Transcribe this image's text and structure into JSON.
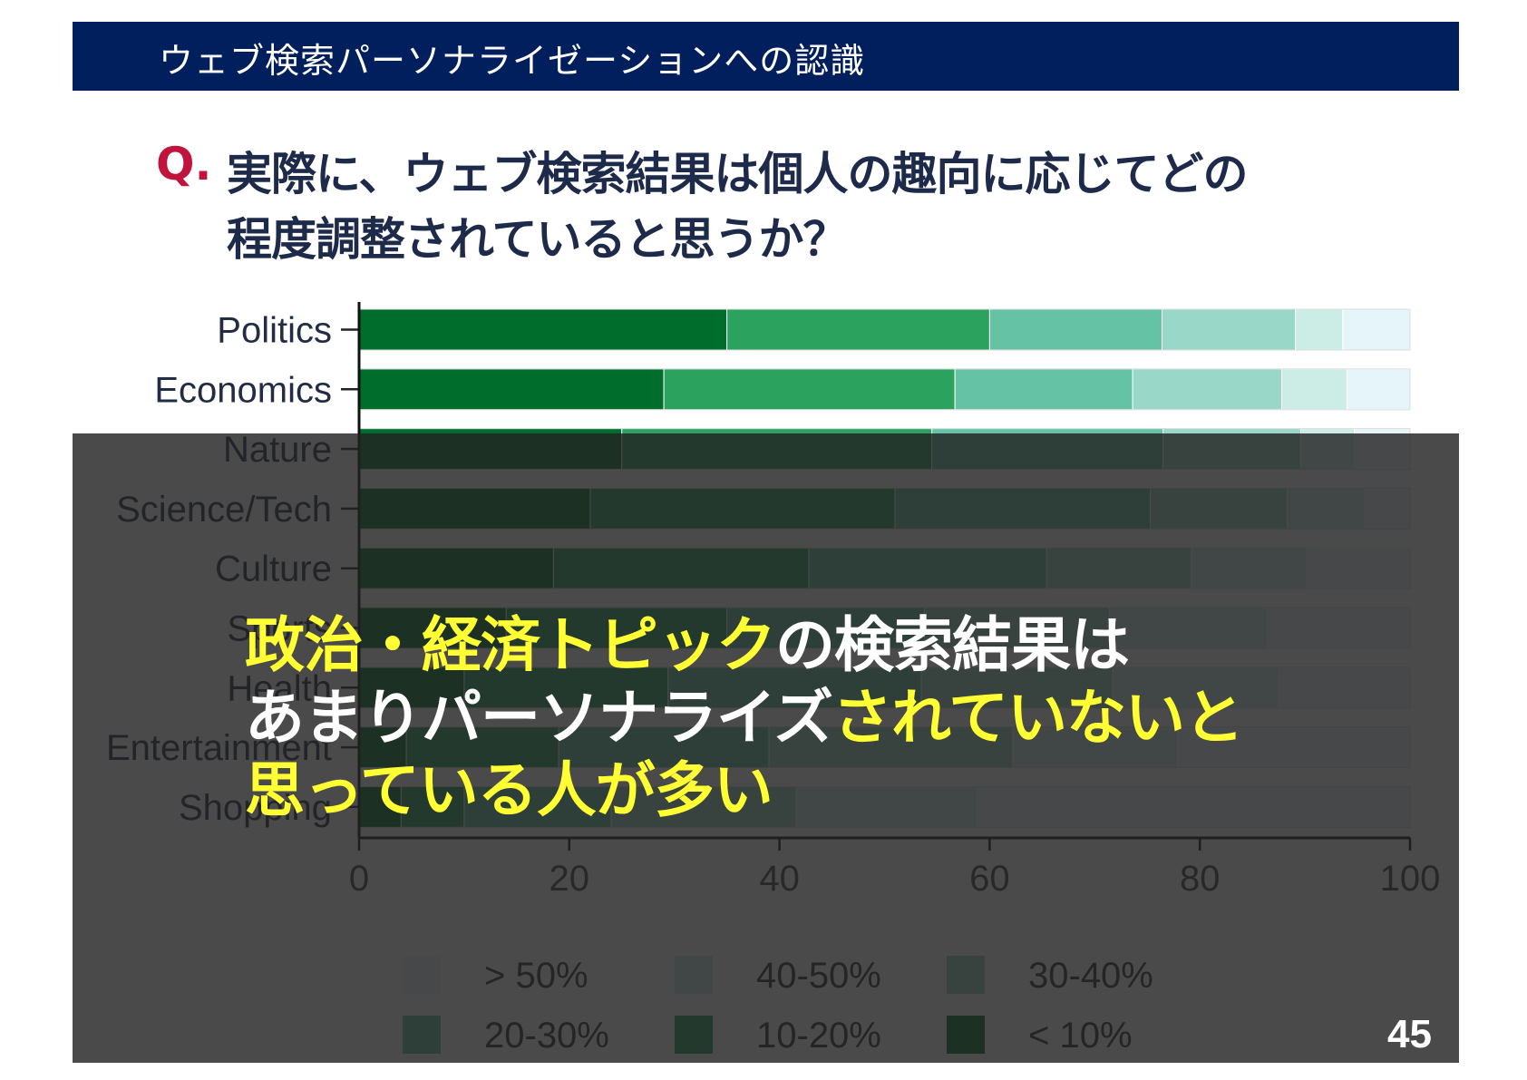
{
  "header": {
    "title": "ウェブ検索パーソナライゼーションへの認識"
  },
  "question": {
    "mark": "Q.",
    "line1": "実際に、ウェブ検索結果は個人の趣向に応じてどの",
    "line2": "程度調整されていると思うか？"
  },
  "chart_data": {
    "type": "bar",
    "orientation": "horizontal",
    "stacked": true,
    "categories": [
      "Politics",
      "Economics",
      "Nature",
      "Science/Tech",
      "Culture",
      "Sports",
      "Health",
      "Entertainment",
      "Shopping"
    ],
    "series": [
      {
        "name": "< 10%",
        "color": "#006d2c",
        "values": [
          35,
          29,
          25,
          22,
          18.5,
          14,
          10,
          4.5,
          4
        ]
      },
      {
        "name": "10-20%",
        "color": "#2ca25f",
        "values": [
          25,
          27.7,
          29.5,
          29,
          24.3,
          21,
          19.4,
          14.5,
          6
        ]
      },
      {
        "name": "20-30%",
        "color": "#66c2a4",
        "values": [
          16.4,
          16.9,
          22,
          24.3,
          22.6,
          18.8,
          24.1,
          20,
          14
        ]
      },
      {
        "name": "30-40%",
        "color": "#99d8c9",
        "values": [
          12.7,
          14.2,
          13.1,
          13,
          13.8,
          17.6,
          18.2,
          23.2,
          17.6
        ]
      },
      {
        "name": "40-50%",
        "color": "#ccece6",
        "values": [
          4.5,
          6.2,
          5.1,
          7.4,
          11,
          15,
          15.8,
          15.7,
          17.2
        ]
      },
      {
        "name": "> 50%",
        "color": "#e5f5f9",
        "values": [
          6.4,
          6,
          5.3,
          4.3,
          9.8,
          13.6,
          12.5,
          22.1,
          41.2
        ]
      }
    ],
    "xlim": [
      0,
      100
    ],
    "xticks": [
      "0",
      "20",
      "40",
      "60",
      "80",
      "100"
    ],
    "legend": {
      "placement": "bottom",
      "order": [
        "> 50%",
        "40-50%",
        "30-40%",
        "20-30%",
        "10-20%",
        "< 10%"
      ]
    },
    "grid": false
  },
  "message": {
    "line1": [
      {
        "text": "政治・経済トピック",
        "color": "#ffff33"
      },
      {
        "text": "の検索結果は",
        "color": "#ffffff"
      }
    ],
    "line2": [
      {
        "text": "あまりパーソナライズ",
        "color": "#ffffff"
      },
      {
        "text": "されていないと",
        "color": "#ffff33"
      }
    ],
    "line3": [
      {
        "text": "思っている人が多い",
        "color": "#ffff33"
      }
    ]
  },
  "page_number": "45"
}
